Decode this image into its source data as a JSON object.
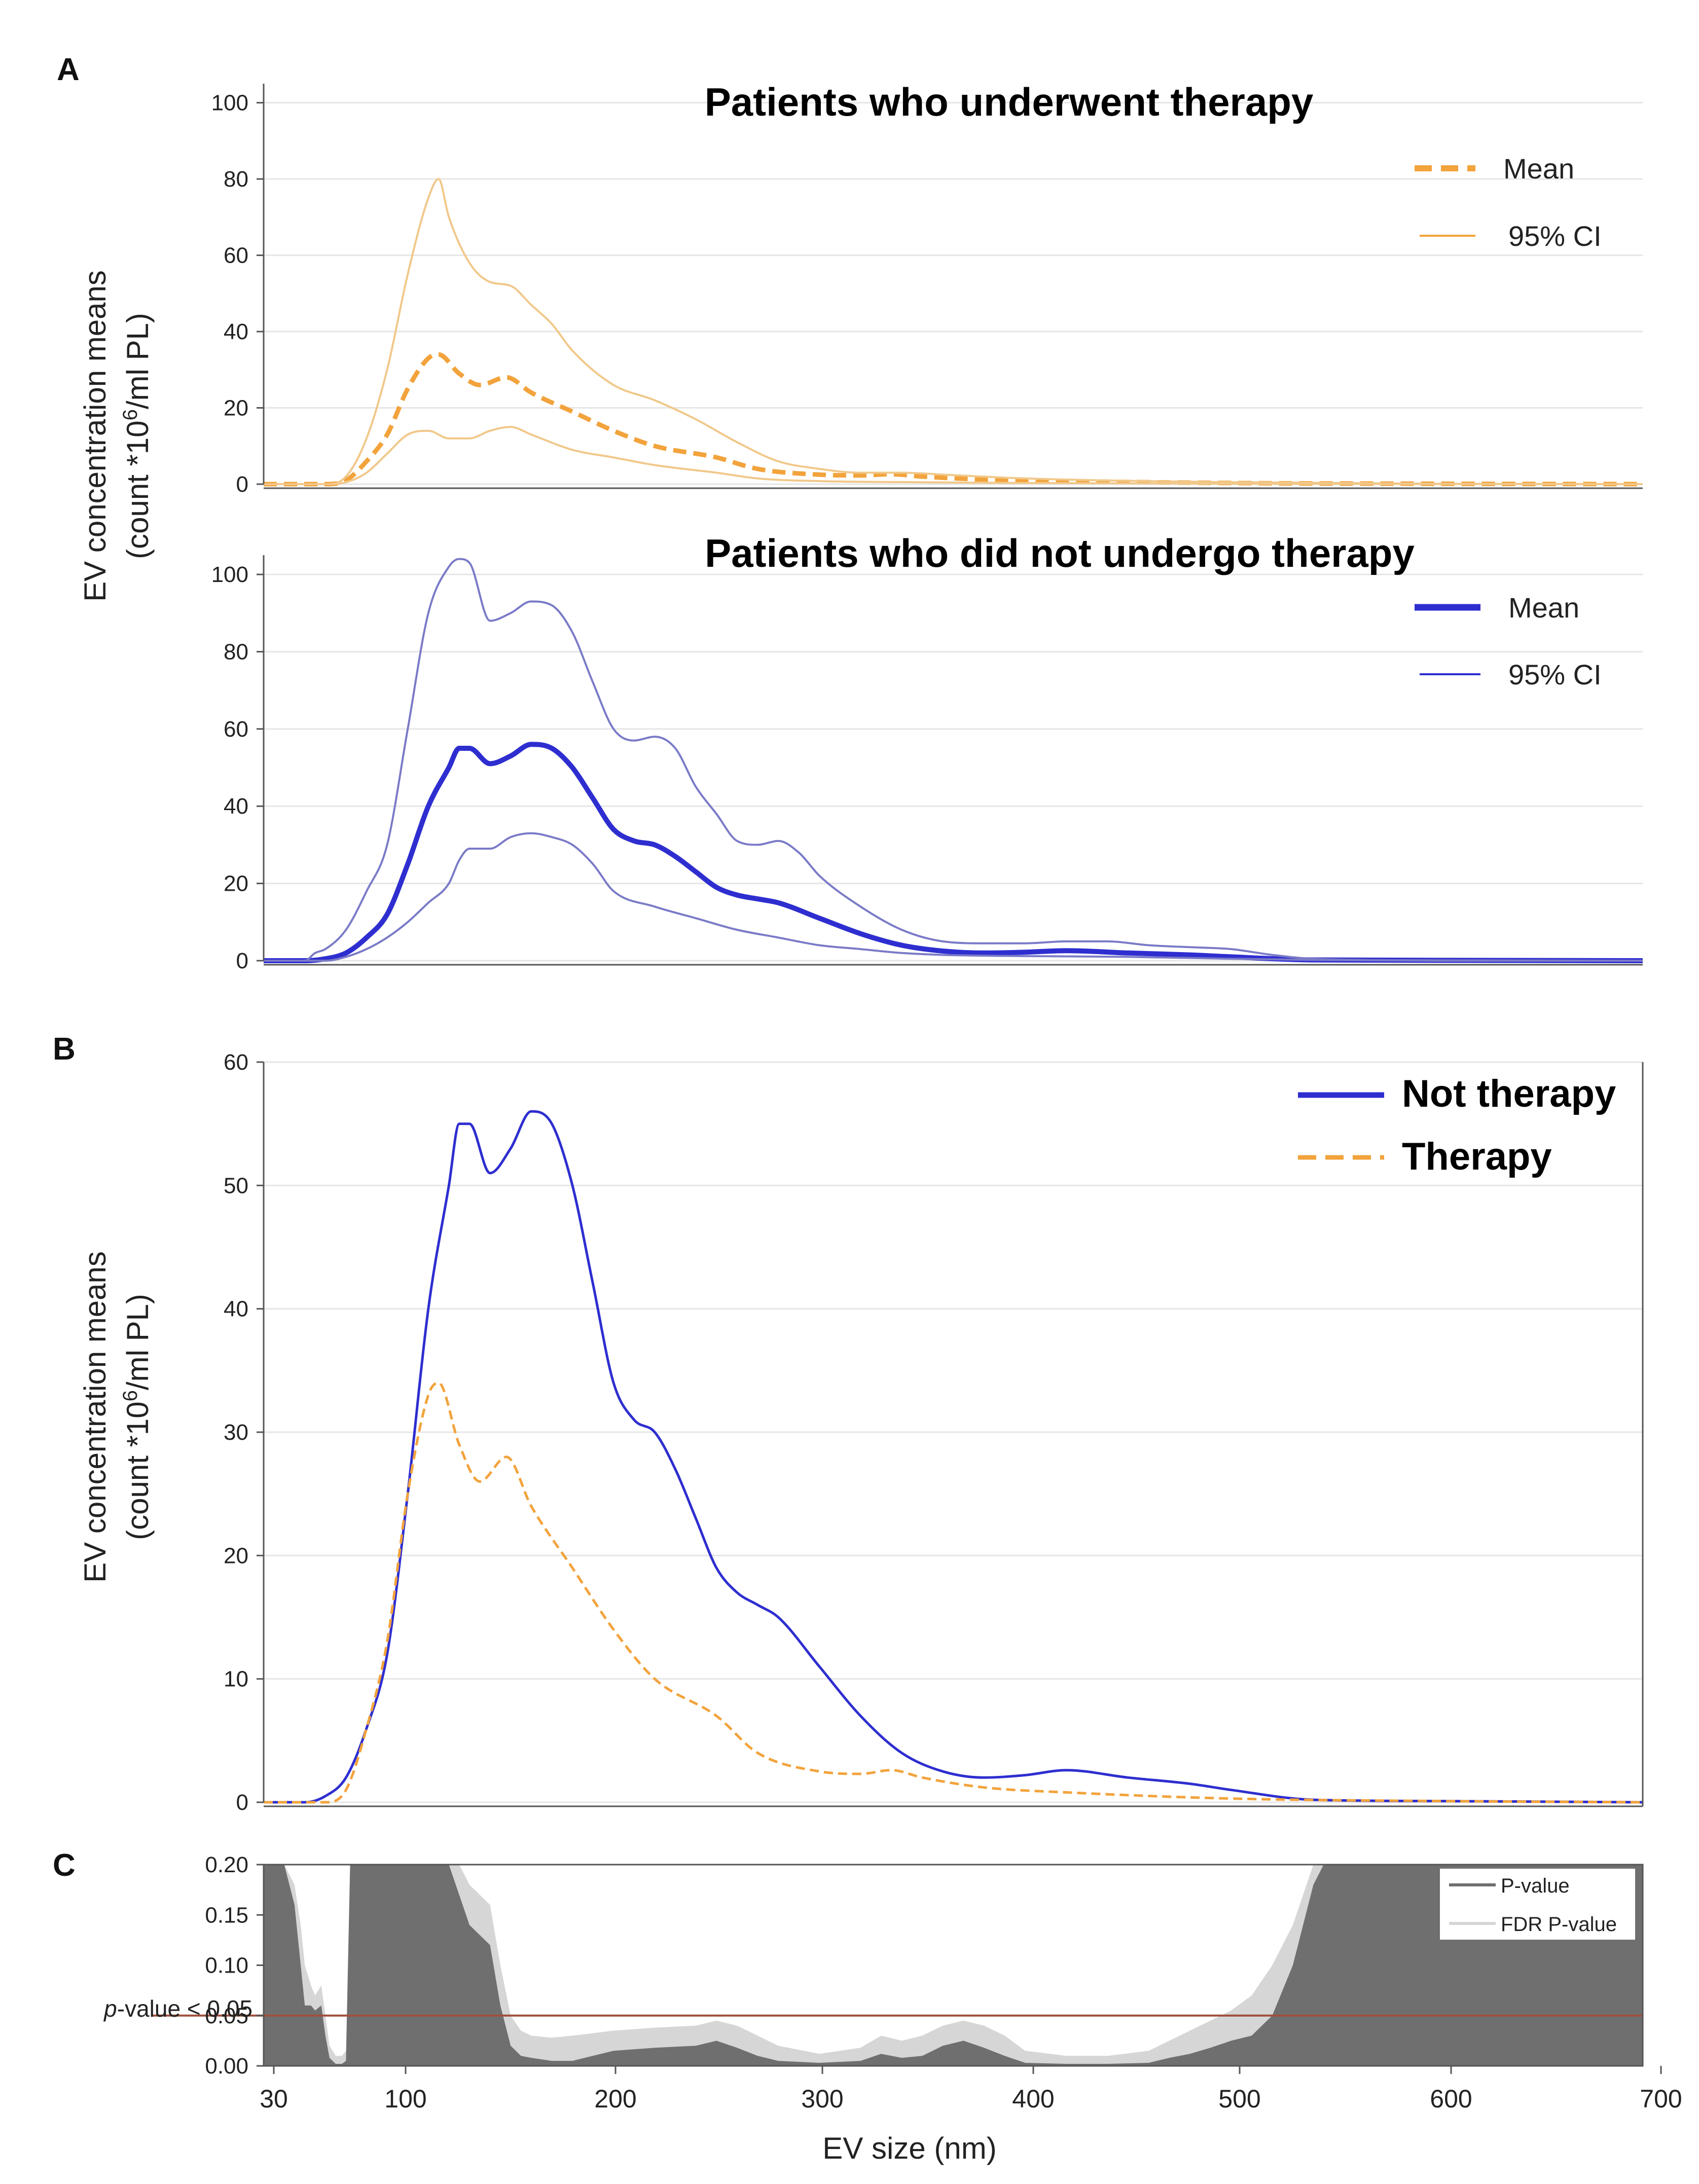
{
  "figure": {
    "panel_labels": [
      "A",
      "B",
      "C"
    ],
    "ylabel_line1": "EV concentration means",
    "ylabel_line2": "(count *10",
    "ylabel_sup": "6",
    "ylabel_line2_end": "/ml PL)",
    "xlabel": "EV size (nm)",
    "x_ticks": [
      "30",
      "100",
      "200",
      "300",
      "400",
      "500",
      "600",
      "700"
    ]
  },
  "colors": {
    "therapy": "#F2A33C",
    "therapy_ci": "#F1C88A",
    "no_therapy": "#2E2ED0",
    "no_therapy_ci": "#7A7AC8",
    "pvalue": "#6F6F6F",
    "fdr": "#D6D6D6",
    "threshold": "#A0503C",
    "grid": "#E6E6E6",
    "axis": "#555555"
  },
  "chart_data": [
    {
      "id": "A1",
      "type": "line",
      "title": "Patients who underwent therapy",
      "xlim": [
        30,
        700
      ],
      "ylim": [
        0,
        105
      ],
      "y_ticks": [
        0,
        20,
        40,
        60,
        80,
        100
      ],
      "legend": {
        "position": "top-right",
        "entries": [
          "Mean",
          "95% CI"
        ]
      },
      "series": [
        {
          "name": "Mean",
          "style": "dashed",
          "x": [
            30,
            60,
            70,
            80,
            90,
            100,
            110,
            115,
            125,
            135,
            148,
            160,
            180,
            200,
            220,
            250,
            270,
            300,
            320,
            335,
            350,
            380,
            420,
            500,
            600,
            700
          ],
          "values": [
            0,
            0,
            1,
            6,
            13,
            25,
            33,
            34,
            29,
            26,
            28,
            24,
            19,
            14,
            10,
            7,
            4,
            2.5,
            2.3,
            2.6,
            2,
            1.2,
            0.8,
            0.3,
            0.1,
            0
          ]
        },
        {
          "name": "95% CI upper",
          "style": "thin",
          "x": [
            30,
            60,
            70,
            80,
            90,
            100,
            110,
            115,
            120,
            130,
            140,
            150,
            160,
            170,
            180,
            200,
            220,
            240,
            260,
            280,
            300,
            320,
            340,
            360,
            400,
            500,
            600,
            700
          ],
          "values": [
            0,
            0,
            2,
            12,
            30,
            55,
            75,
            80,
            70,
            58,
            53,
            52,
            47,
            42,
            35,
            26,
            22,
            17,
            11,
            6,
            4,
            3,
            3,
            2.5,
            1.5,
            0.5,
            0.1,
            0
          ]
        },
        {
          "name": "95% CI lower",
          "style": "thin",
          "x": [
            30,
            60,
            70,
            80,
            90,
            100,
            110,
            120,
            130,
            140,
            150,
            160,
            180,
            200,
            220,
            250,
            270,
            300,
            350,
            400,
            500,
            700
          ],
          "values": [
            0,
            0,
            0.5,
            3,
            8,
            13,
            14,
            12,
            12,
            14,
            15,
            13,
            9,
            7,
            5,
            3,
            1.5,
            0.8,
            0.5,
            0.3,
            0.1,
            0
          ]
        }
      ]
    },
    {
      "id": "A2",
      "type": "line",
      "title": "Patients who did not undergo therapy",
      "xlim": [
        30,
        700
      ],
      "ylim": [
        0,
        105
      ],
      "y_ticks": [
        0,
        20,
        40,
        60,
        80,
        100
      ],
      "legend": {
        "position": "top-right",
        "entries": [
          "Mean",
          "95% CI"
        ]
      },
      "series": [
        {
          "name": "Mean",
          "style": "thick",
          "x": [
            30,
            50,
            60,
            70,
            80,
            90,
            100,
            110,
            120,
            125,
            130,
            140,
            150,
            160,
            170,
            180,
            190,
            200,
            210,
            220,
            230,
            240,
            250,
            260,
            270,
            280,
            300,
            320,
            340,
            360,
            380,
            400,
            420,
            450,
            480,
            500,
            540,
            600,
            700
          ],
          "values": [
            0,
            0,
            0.5,
            2,
            6,
            12,
            25,
            40,
            50,
            55,
            55,
            51,
            53,
            56,
            55,
            50,
            42,
            34,
            31,
            30,
            27,
            23,
            19,
            17,
            16,
            15,
            11,
            7,
            4,
            2.5,
            2,
            2.2,
            2.6,
            2,
            1.5,
            1,
            0.2,
            0.1,
            0
          ]
        },
        {
          "name": "95% CI upper",
          "style": "thin",
          "x": [
            30,
            50,
            55,
            60,
            70,
            80,
            90,
            100,
            110,
            120,
            125,
            130,
            140,
            150,
            160,
            170,
            180,
            190,
            200,
            210,
            220,
            230,
            240,
            250,
            260,
            270,
            280,
            290,
            300,
            320,
            340,
            360,
            380,
            400,
            420,
            440,
            460,
            480,
            500,
            520,
            540,
            600,
            700
          ],
          "values": [
            0,
            0,
            2,
            3,
            8,
            18,
            30,
            60,
            90,
            102,
            104,
            103,
            88,
            90,
            93,
            92,
            85,
            72,
            60,
            57,
            58,
            55,
            45,
            38,
            31,
            30,
            31,
            28,
            22,
            14,
            8,
            5,
            4.5,
            4.5,
            5,
            5,
            4,
            3.5,
            3,
            1.5,
            0.5,
            0.1,
            0
          ]
        },
        {
          "name": "95% CI lower",
          "style": "thin",
          "x": [
            30,
            60,
            70,
            80,
            90,
            100,
            110,
            120,
            125,
            130,
            140,
            150,
            160,
            170,
            180,
            190,
            200,
            220,
            240,
            260,
            280,
            300,
            320,
            340,
            360,
            400,
            450,
            500,
            540,
            600,
            700
          ],
          "values": [
            0,
            0,
            1,
            3,
            6,
            10,
            15,
            20,
            26,
            29,
            29,
            32,
            33,
            32,
            30,
            25,
            18,
            14,
            11,
            8,
            6,
            4,
            3,
            2,
            1.5,
            1.2,
            1,
            0.5,
            0.2,
            0,
            0
          ]
        }
      ]
    },
    {
      "id": "B",
      "type": "line",
      "title": "",
      "xlim": [
        30,
        700
      ],
      "ylim": [
        0,
        60
      ],
      "y_ticks": [
        0,
        10,
        20,
        30,
        40,
        50,
        60
      ],
      "legend": {
        "position": "top-right",
        "entries": [
          "Not therapy",
          "Therapy"
        ]
      },
      "series": [
        {
          "name": "Not therapy",
          "style": "solid",
          "x": [
            30,
            50,
            60,
            70,
            80,
            90,
            100,
            110,
            120,
            125,
            130,
            140,
            150,
            160,
            170,
            180,
            190,
            200,
            210,
            220,
            230,
            240,
            250,
            260,
            270,
            280,
            300,
            320,
            340,
            360,
            380,
            400,
            420,
            450,
            480,
            500,
            540,
            600,
            700
          ],
          "values": [
            0,
            0,
            0.5,
            2,
            6,
            12,
            25,
            40,
            50,
            55,
            55,
            51,
            53,
            56,
            55,
            50,
            42,
            34,
            31,
            30,
            27,
            23,
            19,
            17,
            16,
            15,
            11,
            7,
            4,
            2.5,
            2,
            2.2,
            2.6,
            2,
            1.5,
            1,
            0.2,
            0.1,
            0
          ]
        },
        {
          "name": "Therapy",
          "style": "dashed",
          "x": [
            30,
            60,
            70,
            80,
            90,
            100,
            110,
            115,
            125,
            135,
            148,
            160,
            180,
            200,
            220,
            250,
            270,
            300,
            320,
            335,
            350,
            380,
            420,
            500,
            600,
            700
          ],
          "values": [
            0,
            0,
            1,
            6,
            13,
            25,
            33,
            34,
            29,
            26,
            28,
            24,
            19,
            14,
            10,
            7,
            4,
            2.5,
            2.3,
            2.6,
            2,
            1.2,
            0.8,
            0.3,
            0.1,
            0
          ]
        }
      ]
    },
    {
      "id": "C",
      "type": "area",
      "title": "",
      "xlim": [
        30,
        700
      ],
      "ylim": [
        0,
        0.2
      ],
      "y_ticks": [
        "0.00",
        "0.05",
        "0.10",
        "0.15",
        "0.20"
      ],
      "threshold": {
        "value": 0.05,
        "label_prefix": "p",
        "label_suffix": "-value < 0.05"
      },
      "legend": {
        "position": "top-right",
        "entries": [
          "P-value",
          "FDR P-value"
        ]
      },
      "series": [
        {
          "name": "P-value",
          "x": [
            30,
            40,
            45,
            48,
            50,
            53,
            55,
            58,
            60,
            62,
            65,
            68,
            70,
            72,
            75,
            78,
            80,
            120,
            125,
            130,
            135,
            140,
            145,
            150,
            155,
            160,
            170,
            180,
            200,
            220,
            240,
            250,
            260,
            270,
            280,
            300,
            320,
            330,
            340,
            350,
            360,
            370,
            380,
            390,
            400,
            420,
            440,
            460,
            470,
            480,
            490,
            500,
            510,
            520,
            530,
            540,
            545,
            550,
            700
          ],
          "values": [
            0.2,
            0.2,
            0.16,
            0.1,
            0.06,
            0.06,
            0.055,
            0.06,
            0.03,
            0.008,
            0.002,
            0.002,
            0.005,
            0.2,
            0.2,
            0.2,
            0.2,
            0.2,
            0.17,
            0.14,
            0.13,
            0.12,
            0.06,
            0.02,
            0.01,
            0.008,
            0.005,
            0.005,
            0.015,
            0.018,
            0.02,
            0.025,
            0.018,
            0.01,
            0.005,
            0.003,
            0.005,
            0.012,
            0.008,
            0.01,
            0.02,
            0.025,
            0.018,
            0.01,
            0.003,
            0.002,
            0.002,
            0.003,
            0.008,
            0.012,
            0.018,
            0.025,
            0.03,
            0.05,
            0.1,
            0.18,
            0.2,
            0.2,
            0.2
          ]
        },
        {
          "name": "FDR P-value",
          "x": [
            30,
            40,
            45,
            48,
            50,
            53,
            55,
            58,
            60,
            62,
            65,
            68,
            70,
            72,
            75,
            78,
            80,
            120,
            125,
            130,
            135,
            140,
            145,
            150,
            155,
            160,
            170,
            180,
            200,
            220,
            240,
            250,
            260,
            270,
            280,
            300,
            320,
            330,
            340,
            350,
            360,
            370,
            380,
            390,
            400,
            420,
            440,
            460,
            470,
            480,
            490,
            500,
            510,
            520,
            530,
            540,
            545,
            550,
            700
          ],
          "values": [
            0.2,
            0.2,
            0.18,
            0.14,
            0.1,
            0.08,
            0.07,
            0.08,
            0.05,
            0.02,
            0.01,
            0.01,
            0.015,
            0.2,
            0.2,
            0.2,
            0.2,
            0.2,
            0.2,
            0.18,
            0.17,
            0.16,
            0.1,
            0.05,
            0.035,
            0.03,
            0.028,
            0.03,
            0.035,
            0.038,
            0.04,
            0.045,
            0.04,
            0.03,
            0.02,
            0.012,
            0.018,
            0.03,
            0.025,
            0.03,
            0.04,
            0.045,
            0.04,
            0.03,
            0.015,
            0.01,
            0.01,
            0.015,
            0.025,
            0.035,
            0.045,
            0.055,
            0.07,
            0.1,
            0.14,
            0.2,
            0.2,
            0.2,
            0.2
          ]
        }
      ]
    }
  ]
}
